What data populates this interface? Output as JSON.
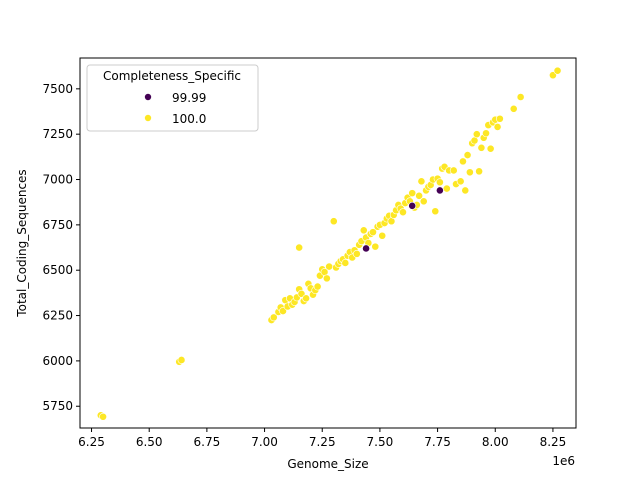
{
  "chart_data": {
    "type": "scatter",
    "xlabel": "Genome_Size",
    "ylabel": "Total_Coding_Sequences",
    "x_offset_label": "1e6",
    "xlim": [
      6.2,
      8.35
    ],
    "ylim": [
      5630,
      7670
    ],
    "x_ticks": [
      6.25,
      6.5,
      6.75,
      7.0,
      7.25,
      7.5,
      7.75,
      8.0,
      8.25
    ],
    "x_tick_labels": [
      "6.25",
      "6.50",
      "6.75",
      "7.00",
      "7.25",
      "7.50",
      "7.75",
      "8.00",
      "8.25"
    ],
    "y_ticks": [
      5750,
      6000,
      6250,
      6500,
      6750,
      7000,
      7250,
      7500
    ],
    "y_tick_labels": [
      "5750",
      "6000",
      "6250",
      "6500",
      "6750",
      "7000",
      "7250",
      "7500"
    ],
    "legend": {
      "title": "Completeness_Specific",
      "placement": "upper-left",
      "entries": [
        {
          "label": "99.99",
          "color": "#440154"
        },
        {
          "label": "100.0",
          "color": "#fde725"
        }
      ]
    },
    "series": [
      {
        "name": "100.0",
        "color": "#fde725",
        "points": [
          [
            6.29,
            5700
          ],
          [
            6.3,
            5692
          ],
          [
            6.63,
            5995
          ],
          [
            6.64,
            6005
          ],
          [
            7.03,
            6225
          ],
          [
            7.04,
            6240
          ],
          [
            7.06,
            6270
          ],
          [
            7.07,
            6295
          ],
          [
            7.08,
            6275
          ],
          [
            7.09,
            6335
          ],
          [
            7.1,
            6300
          ],
          [
            7.11,
            6345
          ],
          [
            7.12,
            6310
          ],
          [
            7.13,
            6325
          ],
          [
            7.14,
            6350
          ],
          [
            7.15,
            6395
          ],
          [
            7.16,
            6370
          ],
          [
            7.17,
            6330
          ],
          [
            7.18,
            6345
          ],
          [
            7.19,
            6425
          ],
          [
            7.2,
            6400
          ],
          [
            7.21,
            6365
          ],
          [
            7.22,
            6390
          ],
          [
            7.23,
            6410
          ],
          [
            7.24,
            6470
          ],
          [
            7.25,
            6505
          ],
          [
            7.26,
            6490
          ],
          [
            7.27,
            6455
          ],
          [
            7.28,
            6520
          ],
          [
            7.15,
            6625
          ],
          [
            7.3,
            6770
          ],
          [
            7.31,
            6515
          ],
          [
            7.32,
            6535
          ],
          [
            7.33,
            6550
          ],
          [
            7.34,
            6560
          ],
          [
            7.35,
            6540
          ],
          [
            7.36,
            6580
          ],
          [
            7.37,
            6600
          ],
          [
            7.38,
            6570
          ],
          [
            7.39,
            6610
          ],
          [
            7.4,
            6590
          ],
          [
            7.41,
            6640
          ],
          [
            7.42,
            6660
          ],
          [
            7.43,
            6720
          ],
          [
            7.44,
            6680
          ],
          [
            7.45,
            6650
          ],
          [
            7.46,
            6700
          ],
          [
            7.47,
            6710
          ],
          [
            7.48,
            6630
          ],
          [
            7.49,
            6740
          ],
          [
            7.5,
            6750
          ],
          [
            7.51,
            6690
          ],
          [
            7.52,
            6760
          ],
          [
            7.53,
            6785
          ],
          [
            7.54,
            6800
          ],
          [
            7.55,
            6770
          ],
          [
            7.56,
            6805
          ],
          [
            7.57,
            6830
          ],
          [
            7.58,
            6860
          ],
          [
            7.59,
            6840
          ],
          [
            7.6,
            6820
          ],
          [
            7.61,
            6870
          ],
          [
            7.62,
            6900
          ],
          [
            7.63,
            6880
          ],
          [
            7.64,
            6925
          ],
          [
            7.65,
            6845
          ],
          [
            7.66,
            6860
          ],
          [
            7.67,
            6910
          ],
          [
            7.68,
            6990
          ],
          [
            7.69,
            6880
          ],
          [
            7.7,
            6940
          ],
          [
            7.71,
            6960
          ],
          [
            7.72,
            6970
          ],
          [
            7.73,
            7000
          ],
          [
            7.74,
            6825
          ],
          [
            7.75,
            7005
          ],
          [
            7.76,
            6985
          ],
          [
            7.77,
            7060
          ],
          [
            7.78,
            7070
          ],
          [
            7.79,
            6950
          ],
          [
            7.8,
            7050
          ],
          [
            7.82,
            7050
          ],
          [
            7.83,
            6975
          ],
          [
            7.85,
            6990
          ],
          [
            7.86,
            7100
          ],
          [
            7.87,
            6940
          ],
          [
            7.88,
            7135
          ],
          [
            7.89,
            7040
          ],
          [
            7.9,
            7200
          ],
          [
            7.91,
            7215
          ],
          [
            7.92,
            7250
          ],
          [
            7.93,
            7045
          ],
          [
            7.94,
            7175
          ],
          [
            7.95,
            7230
          ],
          [
            7.96,
            7255
          ],
          [
            7.97,
            7300
          ],
          [
            7.98,
            7170
          ],
          [
            7.99,
            7315
          ],
          [
            8.0,
            7330
          ],
          [
            8.01,
            7290
          ],
          [
            8.02,
            7335
          ],
          [
            8.08,
            7390
          ],
          [
            8.11,
            7455
          ],
          [
            8.25,
            7575
          ],
          [
            8.27,
            7600
          ]
        ]
      },
      {
        "name": "99.99",
        "color": "#440154",
        "points": [
          [
            7.44,
            6620
          ],
          [
            7.64,
            6855
          ],
          [
            7.76,
            6940
          ]
        ]
      }
    ]
  }
}
